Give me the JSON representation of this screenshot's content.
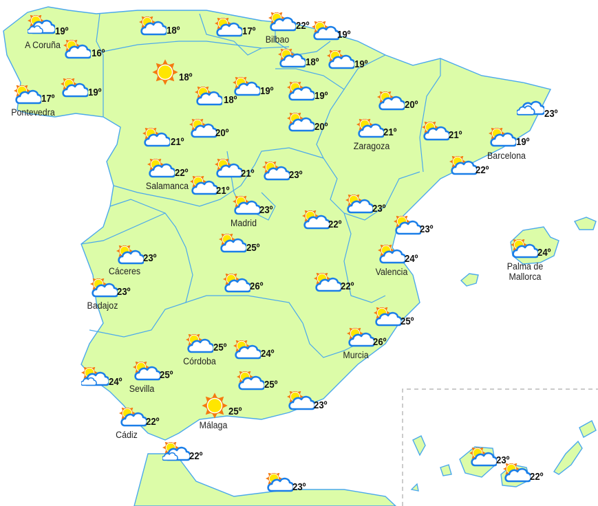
{
  "colors": {
    "land": "#dcfca8",
    "border": "#4aa8ec",
    "sun_ray": "#f47a10",
    "sun_core": "#ffe600",
    "cloud_stroke": "#1a7ee8",
    "text": "#111111"
  },
  "stations": [
    {
      "city": "A Coruña",
      "temp": "19º",
      "icon": "sun-double-cloud"
    },
    {
      "city": "",
      "temp": "16º",
      "icon": "partly-cloudy"
    },
    {
      "city": "Pontevedra",
      "temp": "17º",
      "icon": "partly-cloudy"
    },
    {
      "city": "",
      "temp": "19º",
      "icon": "partly-cloudy"
    },
    {
      "city": "",
      "temp": "18º",
      "icon": "partly-cloudy"
    },
    {
      "city": "",
      "temp": "17º",
      "icon": "partly-cloudy"
    },
    {
      "city": "Bilbao",
      "temp": "22º",
      "icon": "partly-cloudy"
    },
    {
      "city": "",
      "temp": "19º",
      "icon": "partly-cloudy"
    },
    {
      "city": "",
      "temp": "18º",
      "icon": "partly-cloudy"
    },
    {
      "city": "",
      "temp": "19º",
      "icon": "partly-cloudy"
    },
    {
      "city": "",
      "temp": "18º",
      "icon": "sunny"
    },
    {
      "city": "",
      "temp": "18º",
      "icon": "partly-cloudy"
    },
    {
      "city": "",
      "temp": "19º",
      "icon": "partly-cloudy"
    },
    {
      "city": "",
      "temp": "19º",
      "icon": "partly-cloudy"
    },
    {
      "city": "",
      "temp": "20º",
      "icon": "partly-cloudy"
    },
    {
      "city": "",
      "temp": "21º",
      "icon": "partly-cloudy"
    },
    {
      "city": "",
      "temp": "20º",
      "icon": "partly-cloudy"
    },
    {
      "city": "Salamanca",
      "temp": "22º",
      "icon": "partly-cloudy"
    },
    {
      "city": "",
      "temp": "21º",
      "icon": "partly-cloudy"
    },
    {
      "city": "",
      "temp": "21º",
      "icon": "partly-cloudy"
    },
    {
      "city": "",
      "temp": "23º",
      "icon": "partly-cloudy"
    },
    {
      "city": "Madrid",
      "temp": "23º",
      "icon": "partly-cloudy"
    },
    {
      "city": "",
      "temp": "20º",
      "icon": "partly-cloudy"
    },
    {
      "city": "Zaragoza",
      "temp": "21º",
      "icon": "partly-cloudy"
    },
    {
      "city": "",
      "temp": "21º",
      "icon": "partly-cloudy"
    },
    {
      "city": "",
      "temp": "23º",
      "icon": "cloudy"
    },
    {
      "city": "Barcelona",
      "temp": "19º",
      "icon": "partly-cloudy"
    },
    {
      "city": "",
      "temp": "22º",
      "icon": "partly-cloudy"
    },
    {
      "city": "",
      "temp": "23º",
      "icon": "partly-cloudy"
    },
    {
      "city": "",
      "temp": "22º",
      "icon": "partly-cloudy"
    },
    {
      "city": "",
      "temp": "23º",
      "icon": "partly-cloudy"
    },
    {
      "city": "",
      "temp": "25º",
      "icon": "partly-cloudy"
    },
    {
      "city": "Cáceres",
      "temp": "23º",
      "icon": "partly-cloudy"
    },
    {
      "city": "Badajoz",
      "temp": "23º",
      "icon": "partly-cloudy"
    },
    {
      "city": "Valencia",
      "temp": "24º",
      "icon": "partly-cloudy"
    },
    {
      "city": "Palma de Mallorca",
      "temp": "24º",
      "icon": "partly-cloudy"
    },
    {
      "city": "",
      "temp": "26º",
      "icon": "partly-cloudy"
    },
    {
      "city": "",
      "temp": "22º",
      "icon": "partly-cloudy"
    },
    {
      "city": "",
      "temp": "25º",
      "icon": "partly-cloudy"
    },
    {
      "city": "Murcia",
      "temp": "26º",
      "icon": "partly-cloudy"
    },
    {
      "city": "Córdoba",
      "temp": "25º",
      "icon": "partly-cloudy"
    },
    {
      "city": "",
      "temp": "24º",
      "icon": "partly-cloudy"
    },
    {
      "city": "",
      "temp": "24º",
      "icon": "sun-double-cloud"
    },
    {
      "city": "Sevilla",
      "temp": "25º",
      "icon": "partly-cloudy"
    },
    {
      "city": "",
      "temp": "25º",
      "icon": "partly-cloudy"
    },
    {
      "city": "Málaga",
      "temp": "25º",
      "icon": "sunny"
    },
    {
      "city": "",
      "temp": "23º",
      "icon": "partly-cloudy"
    },
    {
      "city": "Cádiz",
      "temp": "22º",
      "icon": "partly-cloudy"
    },
    {
      "city": "",
      "temp": "22º",
      "icon": "sun-double-cloud"
    },
    {
      "city": "",
      "temp": "23º",
      "icon": "partly-cloudy"
    },
    {
      "city": "",
      "temp": "23º",
      "icon": "partly-cloudy"
    },
    {
      "city": "",
      "temp": "22º",
      "icon": "partly-cloudy"
    }
  ]
}
